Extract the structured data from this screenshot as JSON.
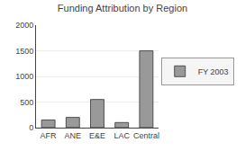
{
  "chart_data": {
    "type": "bar",
    "title": "Funding Attribution by Region",
    "categories": [
      "AFR",
      "ANE",
      "E&E",
      "LAC",
      "Central"
    ],
    "series": [
      {
        "name": "FY 2003",
        "color": "#999999",
        "values": [
          150,
          200,
          550,
          100,
          1500
        ]
      }
    ],
    "ylim": [
      0,
      2000
    ],
    "yticks": [
      0,
      500,
      1000,
      1500,
      2000
    ],
    "grid": true,
    "legend": "right"
  }
}
